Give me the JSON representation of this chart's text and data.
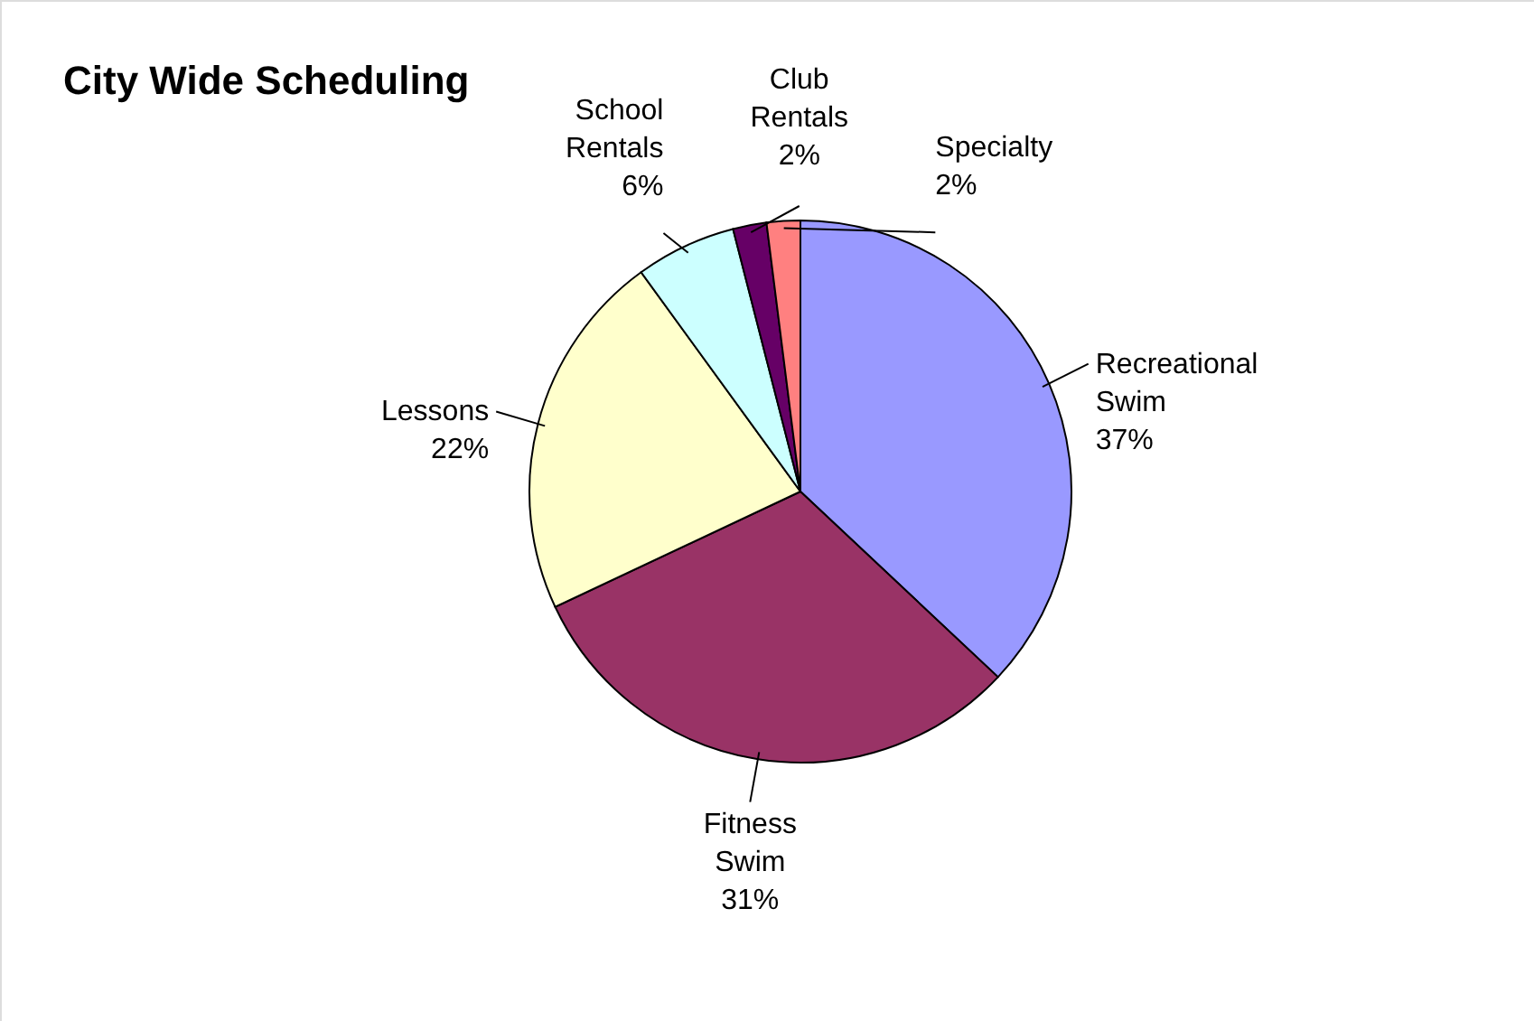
{
  "chart_data": {
    "type": "pie",
    "title": "City Wide Scheduling",
    "categories": [
      "Recreational Swim",
      "Fitness Swim",
      "Lessons",
      "School Rentals",
      "Club Rentals",
      "Specialty"
    ],
    "values": [
      37,
      31,
      22,
      6,
      2,
      2
    ],
    "value_labels": [
      "37%",
      "31%",
      "22%",
      "6%",
      "2%",
      "2%"
    ],
    "colors": [
      "#9999ff",
      "#993366",
      "#ffffcc",
      "#ccffff",
      "#660066",
      "#ff8080"
    ]
  }
}
